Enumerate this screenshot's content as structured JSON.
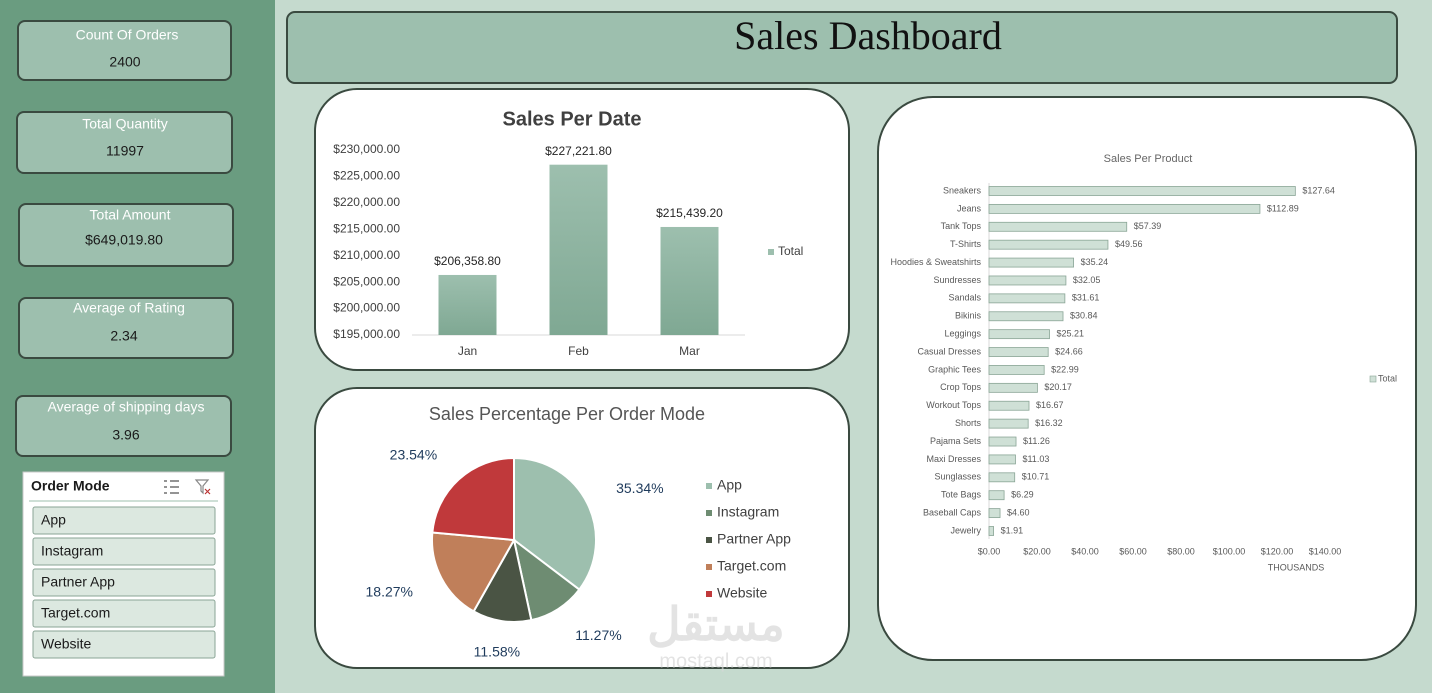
{
  "header": {
    "title": "Sales Dashboard"
  },
  "kpis": [
    {
      "label": "Count Of Orders",
      "value": "2400"
    },
    {
      "label": "Total Quantity",
      "value": "11997"
    },
    {
      "label": "Total Amount",
      "value": "$649,019.80"
    },
    {
      "label": "Average of Rating",
      "value": "2.34"
    },
    {
      "label": "Average of shipping days",
      "value": "3.96"
    }
  ],
  "slicer": {
    "title": "Order Mode",
    "items": [
      "App",
      "Instagram",
      "Partner App",
      "Target.com",
      "Website"
    ]
  },
  "watermark": {
    "text": "مستقل",
    "url": "mostaql.com"
  },
  "chart_data": [
    {
      "type": "bar",
      "title": "Sales Per Date",
      "categories": [
        "Jan",
        "Feb",
        "Mar"
      ],
      "series": [
        {
          "name": "Total",
          "color": "#9dbfae",
          "values": [
            206358.8,
            227221.8,
            215439.2
          ],
          "value_labels": [
            "$206,358.80",
            "$227,221.80",
            "$215,439.20"
          ]
        }
      ],
      "ylim": [
        195000,
        230000
      ],
      "yticks": [
        {
          "value": 195000,
          "label": "$195,000.00"
        },
        {
          "value": 200000,
          "label": "$200,000.00"
        },
        {
          "value": 205000,
          "label": "$205,000.00"
        },
        {
          "value": 210000,
          "label": "$210,000.00"
        },
        {
          "value": 215000,
          "label": "$215,000.00"
        },
        {
          "value": 220000,
          "label": "$220,000.00"
        },
        {
          "value": 225000,
          "label": "$225,000.00"
        },
        {
          "value": 230000,
          "label": "$230,000.00"
        }
      ],
      "legend": "right"
    },
    {
      "type": "pie",
      "title": "Sales Percentage Per Order Mode",
      "categories": [
        "App",
        "Instagram",
        "Partner App",
        "Target.com",
        "Website"
      ],
      "values": [
        35.34,
        11.27,
        11.58,
        18.27,
        23.54
      ],
      "value_labels": [
        "35.34%",
        "11.27%",
        "11.58%",
        "18.27%",
        "23.54%"
      ],
      "colors": [
        "#9dbfae",
        "#6e8c72",
        "#4a5444",
        "#c07f5a",
        "#c0393b"
      ],
      "legend": "right"
    },
    {
      "type": "bar",
      "orientation": "horizontal",
      "title": "Sales Per Product",
      "categories": [
        "Sneakers",
        "Jeans",
        "Tank Tops",
        "T-Shirts",
        "Hoodies & Sweatshirts",
        "Sundresses",
        "Sandals",
        "Bikinis",
        "Leggings",
        "Casual Dresses",
        "Graphic Tees",
        "Crop Tops",
        "Workout Tops",
        "Shorts",
        "Pajama Sets",
        "Maxi Dresses",
        "Sunglasses",
        "Tote Bags",
        "Baseball Caps",
        "Jewelry"
      ],
      "series": [
        {
          "name": "Total",
          "color": "#cfe0d6",
          "values": [
            127.64,
            112.89,
            57.39,
            49.56,
            35.24,
            32.05,
            31.61,
            30.84,
            25.21,
            24.66,
            22.99,
            20.17,
            16.67,
            16.32,
            11.26,
            11.03,
            10.71,
            6.29,
            4.6,
            1.91
          ],
          "value_labels": [
            "$127.64",
            "$112.89",
            "$57.39",
            "$49.56",
            "$35.24",
            "$32.05",
            "$31.61",
            "$30.84",
            "$25.21",
            "$24.66",
            "$22.99",
            "$20.17",
            "$16.67",
            "$16.32",
            "$11.26",
            "$11.03",
            "$10.71",
            "$6.29",
            "$4.60",
            "$1.91"
          ]
        }
      ],
      "xlim": [
        0,
        140
      ],
      "xticks": [
        {
          "value": 0,
          "label": "$0.00"
        },
        {
          "value": 20,
          "label": "$20.00"
        },
        {
          "value": 40,
          "label": "$40.00"
        },
        {
          "value": 60,
          "label": "$60.00"
        },
        {
          "value": 80,
          "label": "$80.00"
        },
        {
          "value": 100,
          "label": "$100.00"
        },
        {
          "value": 120,
          "label": "$120.00"
        },
        {
          "value": 140,
          "label": "$140.00"
        }
      ],
      "x_label": "THOUSANDS",
      "legend": "right"
    }
  ]
}
